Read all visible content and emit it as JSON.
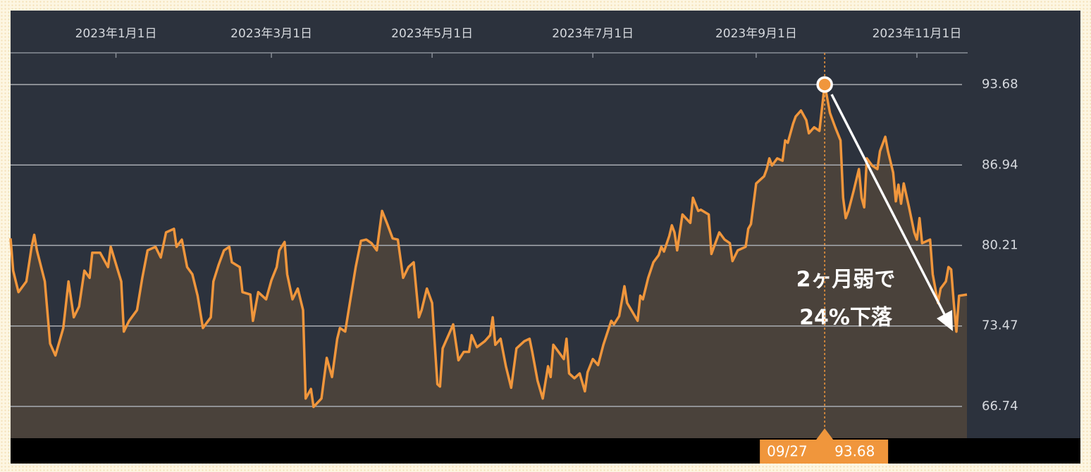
{
  "chart_data": {
    "type": "line",
    "area": true,
    "color": "#f0963c",
    "area_color": "#4a423b",
    "x": [
      "2022-11-22",
      "2022-11-23",
      "2022-11-25",
      "2022-11-28",
      "2022-11-30",
      "2022-12-01",
      "2022-12-02",
      "2022-12-05",
      "2022-12-07",
      "2022-12-09",
      "2022-12-12",
      "2022-12-14",
      "2022-12-16",
      "2022-12-18",
      "2022-12-20",
      "2022-12-22",
      "2022-12-23",
      "2022-12-26",
      "2022-12-29",
      "2022-12-30",
      "2023-01-03",
      "2023-01-04",
      "2023-01-06",
      "2023-01-09",
      "2023-01-11",
      "2023-01-13",
      "2023-01-16",
      "2023-01-18",
      "2023-01-20",
      "2023-01-23",
      "2023-01-24",
      "2023-01-26",
      "2023-01-28",
      "2023-01-30",
      "2023-02-01",
      "2023-02-03",
      "2023-02-06",
      "2023-02-07",
      "2023-02-09",
      "2023-02-11",
      "2023-02-13",
      "2023-02-14",
      "2023-02-17",
      "2023-02-18",
      "2023-02-21",
      "2023-02-22",
      "2023-02-24",
      "2023-02-27",
      "2023-03-01",
      "2023-03-03",
      "2023-03-04",
      "2023-03-06",
      "2023-03-07",
      "2023-03-09",
      "2023-03-11",
      "2023-03-13",
      "2023-03-14",
      "2023-03-16",
      "2023-03-17",
      "2023-03-20",
      "2023-03-22",
      "2023-03-24",
      "2023-03-26",
      "2023-03-27",
      "2023-03-29",
      "2023-03-31",
      "2023-04-02",
      "2023-04-04",
      "2023-04-06",
      "2023-04-08",
      "2023-04-10",
      "2023-04-12",
      "2023-04-14",
      "2023-04-16",
      "2023-04-18",
      "2023-04-20",
      "2023-04-22",
      "2023-04-24",
      "2023-04-26",
      "2023-04-27",
      "2023-04-29",
      "2023-05-01",
      "2023-05-03",
      "2023-05-04",
      "2023-05-05",
      "2023-05-07",
      "2023-05-09",
      "2023-05-11",
      "2023-05-13",
      "2023-05-15",
      "2023-05-16",
      "2023-05-18",
      "2023-05-21",
      "2023-05-23",
      "2023-05-24",
      "2023-05-25",
      "2023-05-27",
      "2023-05-29",
      "2023-05-31",
      "2023-06-02",
      "2023-06-05",
      "2023-06-07",
      "2023-06-08",
      "2023-06-10",
      "2023-06-12",
      "2023-06-14",
      "2023-06-15",
      "2023-06-16",
      "2023-06-20",
      "2023-06-21",
      "2023-06-22",
      "2023-06-24",
      "2023-06-26",
      "2023-06-28",
      "2023-06-29",
      "2023-07-01",
      "2023-07-03",
      "2023-07-05",
      "2023-07-08",
      "2023-07-09",
      "2023-07-11",
      "2023-07-13",
      "2023-07-14",
      "2023-07-18",
      "2023-07-19",
      "2023-07-20",
      "2023-07-22",
      "2023-07-24",
      "2023-07-26",
      "2023-07-27",
      "2023-07-28",
      "2023-07-30",
      "2023-07-31",
      "2023-08-01",
      "2023-08-02",
      "2023-08-04",
      "2023-08-07",
      "2023-08-08",
      "2023-08-10",
      "2023-08-11",
      "2023-08-14",
      "2023-08-15",
      "2023-08-18",
      "2023-08-20",
      "2023-08-22",
      "2023-08-23",
      "2023-08-25",
      "2023-08-28",
      "2023-08-29",
      "2023-08-30",
      "2023-09-01",
      "2023-09-04",
      "2023-09-05",
      "2023-09-06",
      "2023-09-07",
      "2023-09-09",
      "2023-09-11",
      "2023-09-12",
      "2023-09-13",
      "2023-09-15",
      "2023-09-16",
      "2023-09-18",
      "2023-09-20",
      "2023-09-21",
      "2023-09-23",
      "2023-09-25",
      "2023-09-27",
      "2023-09-29",
      "2023-10-01",
      "2023-10-03",
      "2023-10-04",
      "2023-10-05",
      "2023-10-06",
      "2023-10-08",
      "2023-10-10",
      "2023-10-11",
      "2023-10-12",
      "2023-10-13",
      "2023-10-15",
      "2023-10-17",
      "2023-10-18",
      "2023-10-20",
      "2023-10-21",
      "2023-10-23",
      "2023-10-24",
      "2023-10-25",
      "2023-10-26",
      "2023-10-27",
      "2023-10-29",
      "2023-10-31",
      "2023-11-01",
      "2023-11-02",
      "2023-11-03",
      "2023-11-06",
      "2023-11-07",
      "2023-11-09",
      "2023-11-10",
      "2023-11-12",
      "2023-11-13",
      "2023-11-14",
      "2023-11-15",
      "2023-11-16",
      "2023-11-17",
      "2023-11-20"
    ],
    "values": [
      80.8,
      78.1,
      76.3,
      77.2,
      80.1,
      81.1,
      79.8,
      77.2,
      72.0,
      71.0,
      73.3,
      77.2,
      74.2,
      75.1,
      78.1,
      77.5,
      79.6,
      79.6,
      78.4,
      80.1,
      77.2,
      73.0,
      73.9,
      74.8,
      77.5,
      79.8,
      80.1,
      79.2,
      81.3,
      81.6,
      80.1,
      80.7,
      78.4,
      77.8,
      76.0,
      73.3,
      74.2,
      77.2,
      78.6,
      79.8,
      80.1,
      78.8,
      78.4,
      76.3,
      76.1,
      73.9,
      76.3,
      75.7,
      77.3,
      78.4,
      79.8,
      80.5,
      77.8,
      75.7,
      76.6,
      74.8,
      67.4,
      68.2,
      66.7,
      67.4,
      70.8,
      69.2,
      72.4,
      73.3,
      73.0,
      75.7,
      78.4,
      80.6,
      80.7,
      80.4,
      79.8,
      83.1,
      82.0,
      80.8,
      80.7,
      77.5,
      78.4,
      78.8,
      74.2,
      74.8,
      76.6,
      75.4,
      68.6,
      68.4,
      71.6,
      72.6,
      73.6,
      70.6,
      71.3,
      71.3,
      72.7,
      71.7,
      72.2,
      72.7,
      74.2,
      71.9,
      72.4,
      70.1,
      68.3,
      71.6,
      72.2,
      72.4,
      71.3,
      68.9,
      67.4,
      70.1,
      69.2,
      71.9,
      70.7,
      72.4,
      69.5,
      69.1,
      69.5,
      68.0,
      69.6,
      70.7,
      70.2,
      71.9,
      73.9,
      73.6,
      74.3,
      76.8,
      75.4,
      73.9,
      76.0,
      75.7,
      77.5,
      78.8,
      79.4,
      80.1,
      79.7,
      81.0,
      81.9,
      81.3,
      79.8,
      82.8,
      82.1,
      84.2,
      83.1,
      83.2,
      82.8,
      79.5,
      81.3,
      80.7,
      80.4,
      78.9,
      79.8,
      80.1,
      81.6,
      82.0,
      85.4,
      86.0,
      86.6,
      87.5,
      86.9,
      87.5,
      87.3,
      89.0,
      88.8,
      90.4,
      91.0,
      91.5,
      90.7,
      89.6,
      90.1,
      89.8,
      93.68,
      91.3,
      90.1,
      89.0,
      84.2,
      82.5,
      83.1,
      84.8,
      86.6,
      84.2,
      83.4,
      87.5,
      86.9,
      86.6,
      88.1,
      89.3,
      88.1,
      86.3,
      83.9,
      85.3,
      83.7,
      85.4,
      83.4,
      81.3,
      80.7,
      82.5,
      80.4,
      80.7,
      77.8,
      75.4,
      76.6,
      77.2,
      78.4,
      78.2,
      75.4,
      73.0,
      76.0,
      76.1
    ],
    "xlim": [
      "2022-11-22",
      "2023-11-20"
    ],
    "xticks": [
      {
        "value": "2023-01-01",
        "label": "2023年1月1日"
      },
      {
        "value": "2023-03-01",
        "label": "2023年3月1日"
      },
      {
        "value": "2023-05-01",
        "label": "2023年5月1日"
      },
      {
        "value": "2023-07-01",
        "label": "2023年7月1日"
      },
      {
        "value": "2023-09-01",
        "label": "2023年9月1日"
      },
      {
        "value": "2023-11-01",
        "label": "2023年11月1日"
      }
    ],
    "ylim": [
      64.08,
      96.33
    ],
    "yticks": [
      66.74,
      73.47,
      80.21,
      86.94,
      93.68
    ],
    "grid": true,
    "crosshair": {
      "x": "2023-09-27",
      "label": "09/27"
    },
    "annotation": [
      "2ヶ月弱で",
      "24%下落"
    ]
  }
}
